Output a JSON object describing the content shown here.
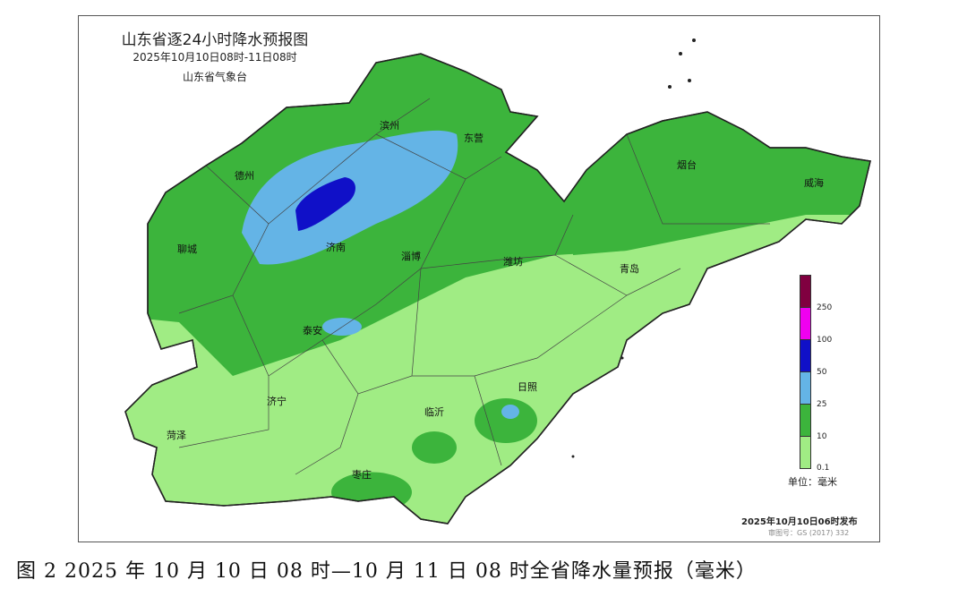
{
  "map": {
    "title": "山东省逐24小时降水预报图",
    "period": "2025年10月10日08时-11日08时",
    "issuer": "山东省气象台",
    "cities": [
      "滨州",
      "东营",
      "德州",
      "烟台",
      "威海",
      "济南",
      "淄博",
      "潍坊",
      "聊城",
      "泰安",
      "青岛",
      "济宁",
      "临沂",
      "日照",
      "菏泽",
      "枣庄"
    ],
    "legend": {
      "unit": "单位：毫米",
      "levels": [
        "0.1",
        "10",
        "25",
        "50",
        "100",
        "250"
      ],
      "colors": [
        "#a0ec84",
        "#3cb43c",
        "#64b4e6",
        "#1010c8",
        "#f000f0",
        "#800040"
      ]
    },
    "issued": "2025年10月10日06时发布",
    "review_no": "审图号：GS (2017) 332"
  },
  "caption": "图 2  2025 年 10 月 10 日 08 时—10 月 11 日 08 时全省降水量预报（毫米）"
}
